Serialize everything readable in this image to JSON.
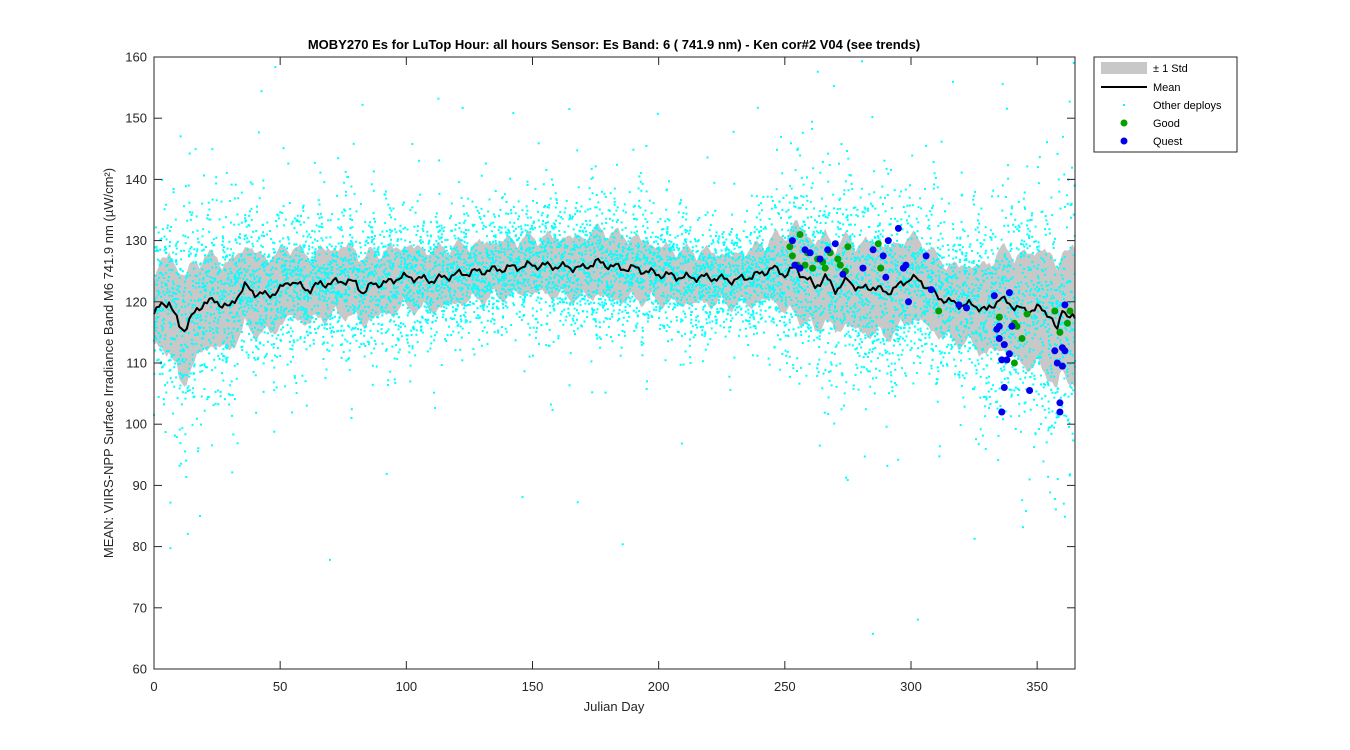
{
  "chart_data": {
    "type": "scatter",
    "title": "MOBY270   Es for LuTop  Hour: all hours  Sensor: Es Band: 6 ( 741.9 nm)  - Ken cor#2 V04 (see trends)",
    "xlabel": "Julian Day",
    "ylabel": "MEAN: VIIRS-NPP Surface Irradiance Band M6 741.9 nm (µW/cm²)",
    "xlim": [
      0,
      365
    ],
    "ylim": [
      60,
      160
    ],
    "x_ticks": [
      0,
      50,
      100,
      150,
      200,
      250,
      300,
      350
    ],
    "y_ticks": [
      60,
      70,
      80,
      90,
      100,
      110,
      120,
      130,
      140,
      150,
      160
    ],
    "grid": false,
    "legend_position": "outside-top-right",
    "legend": [
      {
        "label": "± 1 Std",
        "kind": "band"
      },
      {
        "label": "Mean",
        "kind": "line"
      },
      {
        "label": "Other deploys",
        "kind": "dot"
      },
      {
        "label": "Good",
        "kind": "marker"
      },
      {
        "label": "Quest",
        "kind": "marker"
      }
    ],
    "colors": {
      "std_band": "#c8c8c8",
      "mean": "#000000",
      "other": "#00ffff",
      "good": "#00a000",
      "quest": "#0000ee"
    },
    "mean_anchors": {
      "x": [
        0,
        3,
        6,
        8,
        10,
        12,
        14,
        17,
        20,
        25,
        30,
        33,
        36,
        40,
        45,
        50,
        54,
        58,
        62,
        66,
        70,
        75,
        80,
        83,
        87,
        92,
        97,
        102,
        110,
        120,
        130,
        140,
        150,
        160,
        170,
        175,
        180,
        185,
        190,
        200,
        210,
        220,
        230,
        235,
        240,
        245,
        250,
        254,
        258,
        262,
        266,
        270,
        275,
        280,
        285,
        290,
        295,
        300,
        305,
        310,
        315,
        320,
        325,
        330,
        335,
        340,
        345,
        350,
        355,
        358,
        360,
        362,
        365
      ],
      "y": [
        118,
        119.5,
        120,
        118,
        116,
        115.5,
        117,
        118.5,
        120,
        120,
        119,
        121,
        122.5,
        121.5,
        121,
        122,
        123.5,
        122.5,
        122,
        123,
        123,
        123.5,
        123,
        121.5,
        123,
        123,
        124,
        124,
        123.5,
        124.5,
        125,
        125.5,
        126,
        125.8,
        125.5,
        126.5,
        126,
        125.5,
        125.5,
        124.5,
        124,
        124,
        123.5,
        124,
        124.5,
        125.5,
        124.5,
        125.5,
        124,
        122.5,
        124,
        122,
        123.5,
        122,
        122.5,
        121.5,
        122.5,
        124,
        123,
        121,
        120,
        119.5,
        119.5,
        118.5,
        120.5,
        119.5,
        118.5,
        119,
        118,
        115,
        119,
        118,
        117
      ]
    },
    "std_anchors": {
      "x": [
        0,
        10,
        20,
        30,
        40,
        50,
        60,
        80,
        100,
        130,
        150,
        170,
        180,
        200,
        230,
        245,
        255,
        265,
        275,
        285,
        295,
        305,
        315,
        325,
        335,
        345,
        355,
        360,
        365
      ],
      "y": [
        5,
        8,
        6.5,
        6,
        5.5,
        5,
        4.5,
        4.5,
        4,
        3.5,
        3.5,
        4,
        4.5,
        3.5,
        3,
        4,
        6.5,
        6,
        6,
        6.5,
        6,
        5.5,
        5,
        5.5,
        7,
        8,
        9,
        9,
        10
      ]
    },
    "good_points": [
      {
        "x": 252,
        "y": 129
      },
      {
        "x": 253,
        "y": 127.5
      },
      {
        "x": 255,
        "y": 126
      },
      {
        "x": 256,
        "y": 131
      },
      {
        "x": 258,
        "y": 126
      },
      {
        "x": 259,
        "y": 128
      },
      {
        "x": 261,
        "y": 125.5
      },
      {
        "x": 263,
        "y": 127
      },
      {
        "x": 265,
        "y": 126.5
      },
      {
        "x": 266,
        "y": 125.5
      },
      {
        "x": 268,
        "y": 128
      },
      {
        "x": 271,
        "y": 127
      },
      {
        "x": 272,
        "y": 126
      },
      {
        "x": 274,
        "y": 125
      },
      {
        "x": 275,
        "y": 129
      },
      {
        "x": 287,
        "y": 129.5
      },
      {
        "x": 288,
        "y": 125.5
      },
      {
        "x": 311,
        "y": 118.5
      },
      {
        "x": 335,
        "y": 117.5
      },
      {
        "x": 341,
        "y": 116.5
      },
      {
        "x": 342,
        "y": 116
      },
      {
        "x": 344,
        "y": 114
      },
      {
        "x": 346,
        "y": 118
      },
      {
        "x": 341,
        "y": 110
      },
      {
        "x": 357,
        "y": 118.5
      },
      {
        "x": 359,
        "y": 115
      },
      {
        "x": 362,
        "y": 116.5
      },
      {
        "x": 363,
        "y": 118.5
      }
    ],
    "quest_points": [
      {
        "x": 253,
        "y": 130
      },
      {
        "x": 254,
        "y": 126
      },
      {
        "x": 256,
        "y": 125.5
      },
      {
        "x": 258,
        "y": 128.5
      },
      {
        "x": 260,
        "y": 128
      },
      {
        "x": 264,
        "y": 127
      },
      {
        "x": 267,
        "y": 128.5
      },
      {
        "x": 270,
        "y": 129.5
      },
      {
        "x": 273,
        "y": 124.5
      },
      {
        "x": 281,
        "y": 125.5
      },
      {
        "x": 285,
        "y": 128.5
      },
      {
        "x": 289,
        "y": 127.5
      },
      {
        "x": 290,
        "y": 124
      },
      {
        "x": 291,
        "y": 130
      },
      {
        "x": 295,
        "y": 132
      },
      {
        "x": 297,
        "y": 125.5
      },
      {
        "x": 298,
        "y": 126
      },
      {
        "x": 299,
        "y": 120
      },
      {
        "x": 306,
        "y": 127.5
      },
      {
        "x": 308,
        "y": 122
      },
      {
        "x": 319,
        "y": 119.5
      },
      {
        "x": 322,
        "y": 119
      },
      {
        "x": 333,
        "y": 121
      },
      {
        "x": 334,
        "y": 115.5
      },
      {
        "x": 335,
        "y": 116
      },
      {
        "x": 335,
        "y": 114
      },
      {
        "x": 336,
        "y": 110.5
      },
      {
        "x": 337,
        "y": 113
      },
      {
        "x": 337,
        "y": 106
      },
      {
        "x": 338,
        "y": 110.5
      },
      {
        "x": 336,
        "y": 102
      },
      {
        "x": 339,
        "y": 121.5
      },
      {
        "x": 339,
        "y": 111.5
      },
      {
        "x": 340,
        "y": 116
      },
      {
        "x": 347,
        "y": 105.5
      },
      {
        "x": 357,
        "y": 112
      },
      {
        "x": 358,
        "y": 110
      },
      {
        "x": 359,
        "y": 103.5
      },
      {
        "x": 359,
        "y": 102
      },
      {
        "x": 360,
        "y": 112.5
      },
      {
        "x": 361,
        "y": 112
      },
      {
        "x": 361,
        "y": 119.5
      },
      {
        "x": 360,
        "y": 109.5
      }
    ],
    "other_deploys": {
      "count_per_day": 22,
      "note_values": "dense scatter around the mean within roughly the std band, with sparse outliers from ~66 to ~159"
    }
  }
}
